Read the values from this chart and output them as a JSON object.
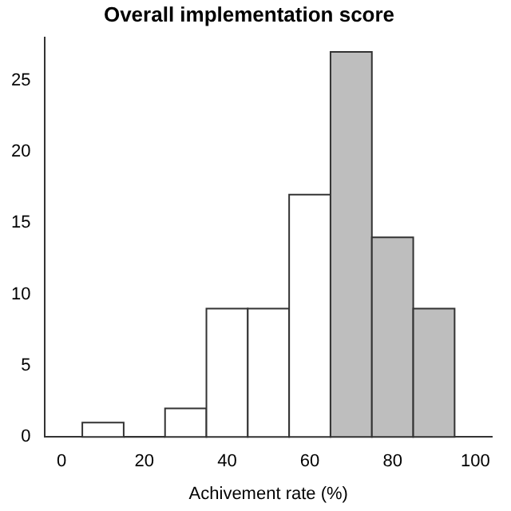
{
  "chart_data": {
    "type": "histogram",
    "title": "Overall implementation score",
    "xlabel": "Achivement rate (%)",
    "bins": [
      5,
      15,
      25,
      35,
      45,
      55,
      65,
      75,
      85,
      95
    ],
    "values": [
      1,
      0,
      2,
      9,
      9,
      17,
      27,
      14,
      9
    ],
    "colors": [
      "#ffffff",
      "#ffffff",
      "#ffffff",
      "#ffffff",
      "#ffffff",
      "#ffffff",
      "#bebebe",
      "#bebebe",
      "#bebebe"
    ],
    "xlim": [
      -4,
      104
    ],
    "xticks": [
      0,
      20,
      40,
      60,
      80,
      100
    ],
    "ylim": [
      0,
      28
    ],
    "yticks": [
      0,
      5,
      10,
      15,
      20,
      25
    ],
    "grid": false,
    "legend": false
  }
}
